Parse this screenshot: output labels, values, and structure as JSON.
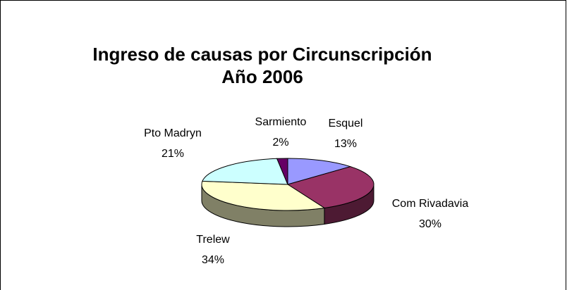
{
  "chart_data": {
    "type": "pie3d",
    "title": [
      "Ingreso de causas por Circunscripción",
      "Año 2006"
    ],
    "categories": [
      "Esquel",
      "Com Rivadavia",
      "Trelew",
      "Pto Madryn",
      "Sarmiento"
    ],
    "values": [
      13,
      30,
      34,
      21,
      2
    ],
    "value_labels": [
      "13%",
      "30%",
      "34%",
      "21%",
      "2%"
    ],
    "colors": [
      "#9999ff",
      "#993366",
      "#ffffcc",
      "#ccffff",
      "#660066"
    ]
  }
}
